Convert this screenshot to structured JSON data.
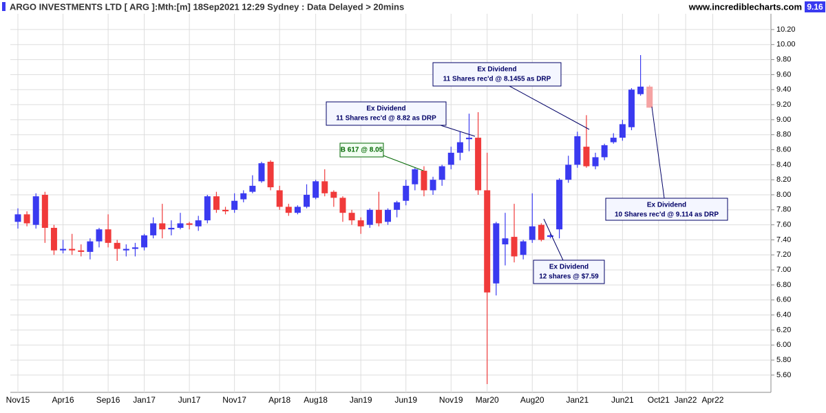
{
  "chart_data": {
    "type": "candlestick",
    "title": "ARGO INVESTMENTS LTD [ ARG ]:Mth:[m]  18Sep2021 12:29 Sydney : Data Delayed > 20mins",
    "source": "www.incrediblecharts.com",
    "last_price": 9.16,
    "up_color": "#3a3af0",
    "down_color": "#f03a3a",
    "current_color": "#f5a3a3",
    "grid": true,
    "categories": [
      "Nov15",
      null,
      null,
      null,
      null,
      "Apr16",
      null,
      null,
      null,
      null,
      "Sep16",
      null,
      null,
      null,
      "Jan17",
      null,
      null,
      null,
      null,
      "Jun17",
      null,
      null,
      null,
      null,
      "Nov17",
      null,
      null,
      null,
      null,
      "Apr18",
      null,
      null,
      null,
      "Aug18",
      null,
      null,
      null,
      null,
      "Jan19",
      null,
      null,
      null,
      null,
      "Jun19",
      null,
      null,
      null,
      null,
      "Nov19",
      null,
      null,
      null,
      "Mar20",
      null,
      null,
      null,
      null,
      "Aug20",
      null,
      null,
      null,
      null,
      "Jan21",
      null,
      null,
      null,
      null,
      "Jun21",
      null,
      null,
      null,
      "Oct21",
      null,
      null,
      "Jan22",
      null,
      null,
      "Apr22"
    ],
    "open": [
      7.64,
      7.74,
      7.6,
      8.0,
      7.56,
      7.26,
      7.28,
      7.26,
      7.24,
      7.38,
      7.54,
      7.36,
      7.26,
      7.28,
      7.3,
      7.46,
      7.62,
      7.54,
      7.56,
      7.62,
      7.58,
      7.66,
      7.98,
      7.8,
      7.8,
      7.94,
      8.04,
      8.18,
      8.44,
      8.06,
      7.84,
      7.76,
      7.84,
      7.96,
      8.18,
      8.04,
      7.96,
      7.76,
      7.66,
      7.6,
      7.8,
      7.64,
      7.8,
      7.92,
      8.14,
      8.32,
      8.06,
      8.2,
      8.4,
      8.56,
      8.74,
      8.76,
      8.06,
      6.82,
      7.34,
      7.44,
      7.2,
      7.4,
      7.6,
      7.44,
      7.54,
      8.2,
      8.4,
      8.64,
      8.38,
      8.5,
      8.7,
      8.76,
      8.9,
      9.34,
      9.44,
      null,
      null,
      null,
      null,
      null,
      null,
      null
    ],
    "high": [
      7.82,
      7.78,
      8.02,
      8.04,
      7.6,
      7.4,
      7.48,
      7.34,
      7.42,
      7.56,
      7.74,
      7.4,
      7.34,
      7.36,
      7.48,
      7.7,
      7.88,
      7.66,
      7.76,
      7.64,
      7.72,
      8.0,
      8.04,
      7.84,
      8.02,
      8.06,
      8.26,
      8.44,
      8.46,
      8.12,
      7.88,
      7.86,
      8.14,
      8.2,
      8.34,
      8.06,
      7.98,
      7.8,
      7.7,
      7.82,
      8.04,
      7.82,
      7.92,
      8.2,
      8.36,
      8.38,
      8.24,
      8.4,
      8.64,
      8.84,
      9.08,
      9.1,
      8.56,
      7.64,
      7.76,
      7.88,
      7.4,
      8.02,
      7.62,
      7.48,
      8.22,
      8.52,
      8.84,
      9.06,
      8.56,
      8.68,
      8.82,
      9.0,
      9.42,
      9.86,
      9.46,
      null,
      null,
      null,
      null,
      null,
      null,
      null
    ],
    "low": [
      7.55,
      7.58,
      7.55,
      7.36,
      7.2,
      7.22,
      7.2,
      7.18,
      7.14,
      7.3,
      7.3,
      7.12,
      7.18,
      7.18,
      7.26,
      7.42,
      7.42,
      7.46,
      7.54,
      7.54,
      7.52,
      7.62,
      7.76,
      7.74,
      7.76,
      7.9,
      8.02,
      8.16,
      8.06,
      7.8,
      7.72,
      7.74,
      7.82,
      7.94,
      7.98,
      7.84,
      7.64,
      7.6,
      7.48,
      7.56,
      7.58,
      7.6,
      7.7,
      7.86,
      8.06,
      7.98,
      8.0,
      8.12,
      8.34,
      8.46,
      8.58,
      8.0,
      5.48,
      6.66,
      7.06,
      7.1,
      7.14,
      7.36,
      7.38,
      7.42,
      7.42,
      8.16,
      8.36,
      8.36,
      8.34,
      8.46,
      8.68,
      8.72,
      8.86,
      9.32,
      9.16,
      null,
      null,
      null,
      null,
      null,
      null,
      null
    ],
    "close": [
      7.74,
      7.62,
      7.98,
      7.56,
      7.26,
      7.28,
      7.26,
      7.24,
      7.38,
      7.54,
      7.36,
      7.28,
      7.28,
      7.3,
      7.46,
      7.62,
      7.54,
      7.56,
      7.62,
      7.6,
      7.66,
      7.98,
      7.8,
      7.78,
      7.92,
      8.02,
      8.12,
      8.42,
      8.1,
      7.84,
      7.76,
      7.84,
      8.0,
      8.18,
      8.02,
      7.96,
      7.76,
      7.66,
      7.58,
      7.8,
      7.62,
      7.8,
      7.9,
      8.12,
      8.34,
      8.06,
      8.2,
      8.38,
      8.56,
      8.7,
      8.76,
      8.06,
      6.7,
      7.62,
      7.42,
      7.18,
      7.38,
      7.58,
      7.4,
      7.46,
      8.2,
      8.4,
      8.78,
      8.38,
      8.5,
      8.66,
      8.76,
      8.94,
      9.4,
      9.44,
      9.16,
      null,
      null,
      null,
      null,
      null,
      null,
      null
    ],
    "ylim": [
      5.37,
      10.41
    ],
    "yticks": [
      {
        "value": 5.6,
        "label": "5.60"
      },
      {
        "value": 5.8,
        "label": "5.80"
      },
      {
        "value": 6.0,
        "label": "6.00"
      },
      {
        "value": 6.2,
        "label": "6.20"
      },
      {
        "value": 6.4,
        "label": "6.40"
      },
      {
        "value": 6.6,
        "label": "6.60"
      },
      {
        "value": 6.8,
        "label": "6.80"
      },
      {
        "value": 7.0,
        "label": "7.00"
      },
      {
        "value": 7.2,
        "label": "7.20"
      },
      {
        "value": 7.4,
        "label": "7.40"
      },
      {
        "value": 7.6,
        "label": "7.60"
      },
      {
        "value": 7.8,
        "label": "7.80"
      },
      {
        "value": 8.0,
        "label": "8.00"
      },
      {
        "value": 8.2,
        "label": "8.20"
      },
      {
        "value": 8.4,
        "label": "8.40"
      },
      {
        "value": 8.6,
        "label": "8.60"
      },
      {
        "value": 8.8,
        "label": "8.80"
      },
      {
        "value": 9.0,
        "label": "9.00"
      },
      {
        "value": 9.2,
        "label": "9.20"
      },
      {
        "value": 9.4,
        "label": "9.40"
      },
      {
        "value": 9.6,
        "label": "9.60"
      },
      {
        "value": 9.8,
        "label": "9.80"
      },
      {
        "value": 10.0,
        "label": "10.00"
      },
      {
        "value": 10.2,
        "label": "10.20"
      }
    ],
    "annotations": [
      {
        "text": "B 617 @ 8.05"
      },
      {
        "title": "Ex Dividend",
        "text": "11 Shares rec'd @ 8.82 as DRP"
      },
      {
        "title": "Ex Dividend",
        "text": "11 Shares rec'd @ 8.1455 as DRP"
      },
      {
        "title": "Ex Dividend",
        "text": "10 Shares rec'd @ 9.114 as DRP"
      },
      {
        "title": "Ex Dividend",
        "text": "12 shares @ $7.59"
      }
    ]
  }
}
